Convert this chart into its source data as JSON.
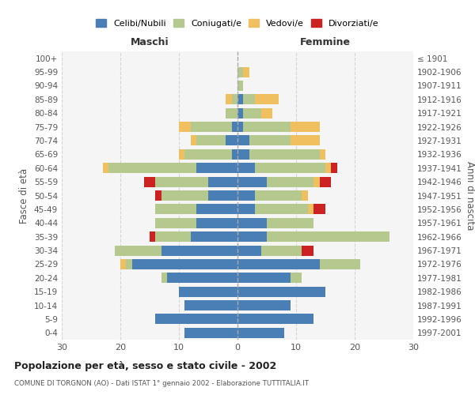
{
  "age_groups": [
    "100+",
    "95-99",
    "90-94",
    "85-89",
    "80-84",
    "75-79",
    "70-74",
    "65-69",
    "60-64",
    "55-59",
    "50-54",
    "45-49",
    "40-44",
    "35-39",
    "30-34",
    "25-29",
    "20-24",
    "15-19",
    "10-14",
    "5-9",
    "0-4"
  ],
  "birth_years": [
    "≤ 1901",
    "1902-1906",
    "1907-1911",
    "1912-1916",
    "1917-1921",
    "1922-1926",
    "1927-1931",
    "1932-1936",
    "1937-1941",
    "1942-1946",
    "1947-1951",
    "1952-1956",
    "1957-1961",
    "1962-1966",
    "1967-1971",
    "1972-1976",
    "1977-1981",
    "1982-1986",
    "1987-1991",
    "1992-1996",
    "1997-2001"
  ],
  "colors": {
    "celibi": "#4a7fb5",
    "coniugati": "#b5c98e",
    "vedovi": "#f0c060",
    "divorziati": "#cc2222"
  },
  "maschi": {
    "celibi": [
      0,
      0,
      0,
      0,
      0,
      1,
      2,
      1,
      7,
      5,
      5,
      7,
      7,
      8,
      13,
      18,
      12,
      10,
      9,
      14,
      9
    ],
    "coniugati": [
      0,
      0,
      0,
      1,
      2,
      7,
      5,
      8,
      15,
      9,
      8,
      7,
      7,
      6,
      8,
      1,
      1,
      0,
      0,
      0,
      0
    ],
    "vedovi": [
      0,
      0,
      0,
      1,
      0,
      2,
      1,
      1,
      1,
      0,
      0,
      0,
      0,
      0,
      0,
      1,
      0,
      0,
      0,
      0,
      0
    ],
    "divorziati": [
      0,
      0,
      0,
      0,
      0,
      0,
      0,
      0,
      0,
      2,
      1,
      0,
      0,
      1,
      0,
      0,
      0,
      0,
      0,
      0,
      0
    ]
  },
  "femmine": {
    "celibi": [
      0,
      0,
      0,
      1,
      1,
      1,
      2,
      2,
      3,
      5,
      3,
      3,
      5,
      5,
      4,
      14,
      9,
      15,
      9,
      13,
      8
    ],
    "coniugati": [
      0,
      1,
      1,
      2,
      3,
      8,
      7,
      12,
      12,
      8,
      8,
      9,
      8,
      21,
      7,
      7,
      2,
      0,
      0,
      0,
      0
    ],
    "vedovi": [
      0,
      1,
      0,
      4,
      2,
      5,
      5,
      1,
      1,
      1,
      1,
      1,
      0,
      0,
      0,
      0,
      0,
      0,
      0,
      0,
      0
    ],
    "divorziati": [
      0,
      0,
      0,
      0,
      0,
      0,
      0,
      0,
      1,
      2,
      0,
      2,
      0,
      0,
      2,
      0,
      0,
      0,
      0,
      0,
      0
    ]
  },
  "xlim": 30,
  "title": "Popolazione per età, sesso e stato civile - 2002",
  "subtitle": "COMUNE DI TORGNON (AO) - Dati ISTAT 1° gennaio 2002 - Elaborazione TUTTITALIA.IT",
  "ylabel_left": "Fasce di età",
  "ylabel_right": "Anni di nascita",
  "xlabel_maschi": "Maschi",
  "xlabel_femmine": "Femmine",
  "legend_labels": [
    "Celibi/Nubili",
    "Coniugati/e",
    "Vedovi/e",
    "Divorziati/e"
  ]
}
